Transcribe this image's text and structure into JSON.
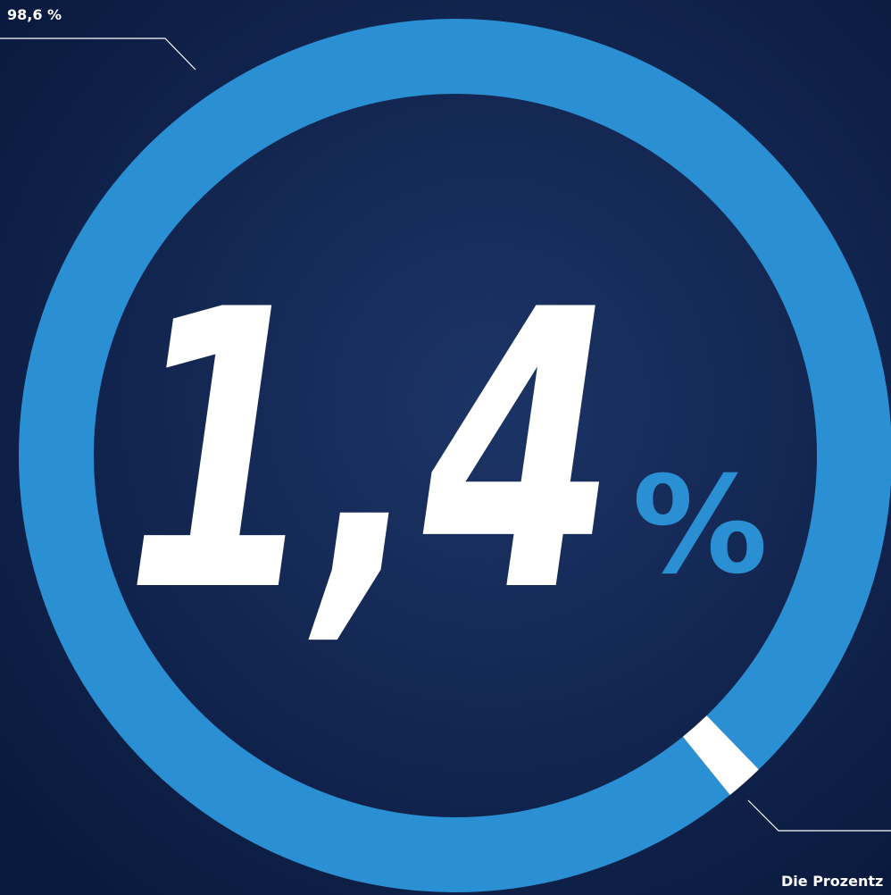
{
  "chart_data": {
    "type": "donut",
    "values": [
      98.6,
      1.4
    ],
    "value_labels": [
      "98,6 %",
      "1,4"
    ],
    "unit_label": "%",
    "colors": [
      "#2a8fd3",
      "#ffffff"
    ],
    "caption": "Die Prozentz"
  }
}
